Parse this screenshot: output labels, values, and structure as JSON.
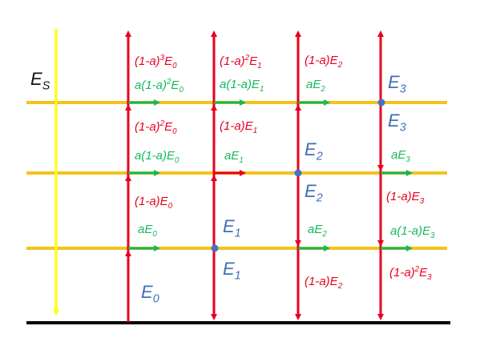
{
  "colors": {
    "background": "#ffffff",
    "atmosphere_line": "#f5c21a",
    "surface_line": "#000000",
    "solar_arrow": "#ffff00",
    "flux_arrow": "#e8001c",
    "absorbed_arrow": "#15b85a",
    "node": "#4472c4",
    "red_text": "#e8001c",
    "green_text": "#15b85a",
    "blue_text": "#3f6fb5"
  },
  "labels": {
    "solar": "E",
    "solar_sub": "S",
    "col1_up_r3": {
      "pre": "(1-a)",
      "sup": "3",
      "e": "E",
      "sub": "0"
    },
    "col1_abs_r3": {
      "pre": "a(1-a)",
      "sup": "2",
      "e": "E",
      "sub": "0"
    },
    "col1_up_r2": {
      "pre": "(1-a)",
      "sup": "2",
      "e": "E",
      "sub": "0"
    },
    "col1_abs_r2": {
      "pre": "a(1-a)",
      "e": "E",
      "sub": "0"
    },
    "col1_up_r1": {
      "pre": "(1-a)",
      "e": "E",
      "sub": "0"
    },
    "col1_abs_r1": {
      "pre": "a",
      "e": "E",
      "sub": "0"
    },
    "col1_source": {
      "e": "E",
      "sub": "0"
    },
    "col2_up_r3": {
      "pre": "(1-a)",
      "sup": "2",
      "e": "E",
      "sub": "1"
    },
    "col2_abs_r3": {
      "pre": "a(1-a)",
      "e": "E",
      "sub": "1"
    },
    "col2_up_r2": {
      "pre": "(1-a)",
      "e": "E",
      "sub": "1"
    },
    "col2_abs_r2": {
      "pre": "a",
      "e": "E",
      "sub": "1"
    },
    "col2_node_top": {
      "e": "E",
      "sub": "1"
    },
    "col2_node_bottom": {
      "e": "E",
      "sub": "1"
    },
    "col3_up_r3": {
      "pre": "(1-a)",
      "e": "E",
      "sub": "2"
    },
    "col3_abs_r3": {
      "pre": "a",
      "e": "E",
      "sub": "2"
    },
    "col3_node_top": {
      "e": "E",
      "sub": "2"
    },
    "col3_node_bottom": {
      "e": "E",
      "sub": "2"
    },
    "col3_abs_r1": {
      "pre": "a",
      "e": "E",
      "sub": "2"
    },
    "col3_down_r0": {
      "pre": "(1-a)",
      "e": "E",
      "sub": "2"
    },
    "col4_node_top": {
      "e": "E",
      "sub": "3"
    },
    "col4_node_bottom": {
      "e": "E",
      "sub": "3"
    },
    "col4_abs_r2": {
      "pre": "a",
      "e": "E",
      "sub": "3"
    },
    "col4_down_r1": {
      "pre": "(1-a)",
      "e": "E",
      "sub": "3"
    },
    "col4_abs_r1": {
      "pre": "a(1-a)",
      "e": "E",
      "sub": "3"
    },
    "col4_down_r0": {
      "pre": "(1-a)",
      "sup": "2",
      "e": "E",
      "sub": "3"
    }
  }
}
